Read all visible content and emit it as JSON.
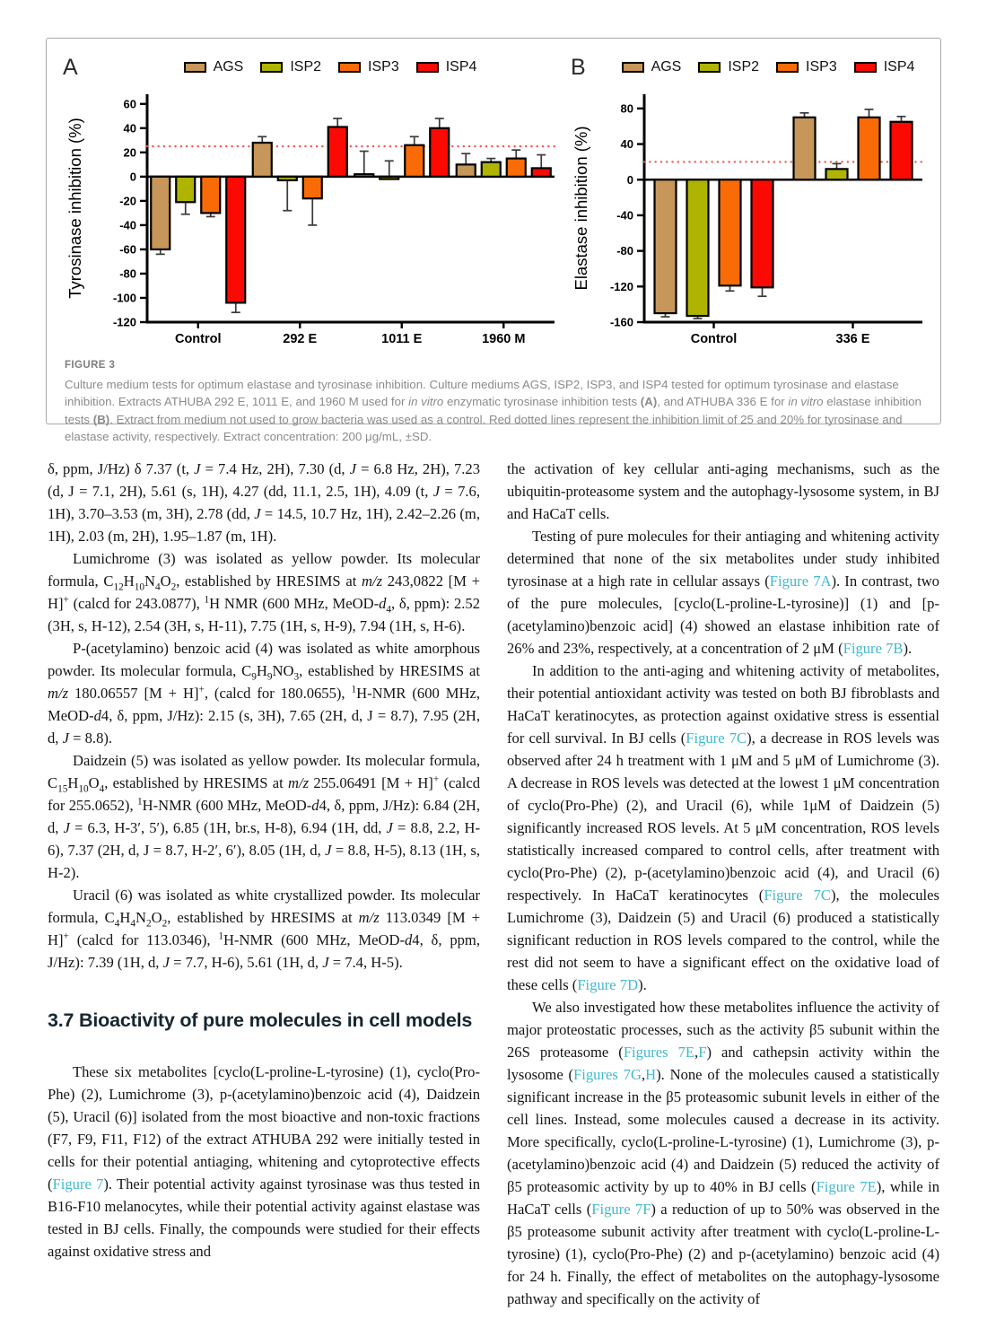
{
  "figure": {
    "caption_label": "FIGURE 3",
    "caption_html": "Culture medium tests for optimum elastase and tyrosinase inhibition. Culture mediums AGS, ISP2, ISP3, and ISP4 tested for optimum tyrosinase and elastase inhibition. Extracts ATHUBA 292 E, 1011 E, and 1960 M used for <i>in vitro</i> enzymatic tyrosinase inhibition tests <b>(A)</b>, and ATHUBA 336 E for <i>in vitro</i> elastase inhibition tests <b>(B)</b>. Extract from medium not used to grow bacteria was used as a control. Red dotted lines represent the inhibition limit of 25 and 20% for tyrosinase and elastase activity, respectively. Extract concentration: 200 μg/mL, ±SD."
  },
  "chart_data": [
    {
      "type": "bar",
      "panel": "A",
      "ylabel": "Tyrosinase inhibition (%)",
      "categories": [
        "Control",
        "292 E",
        "1011 E",
        "1960 M"
      ],
      "series": [
        {
          "name": "AGS",
          "color": "#C6965A",
          "values": [
            -60,
            28,
            2,
            10
          ],
          "errors": [
            4,
            5,
            19,
            9
          ],
          "error_dirs": [
            -1,
            1,
            1,
            1
          ]
        },
        {
          "name": "ISP2",
          "color": "#AFB400",
          "values": [
            -21,
            -3,
            -2,
            12
          ],
          "errors": [
            10,
            25,
            15,
            3
          ],
          "error_dirs": [
            -1,
            -1,
            1,
            1
          ]
        },
        {
          "name": "ISP3",
          "color": "#F96B07",
          "values": [
            -30,
            -18,
            26,
            15
          ],
          "errors": [
            3,
            22,
            7,
            7
          ],
          "error_dirs": [
            -1,
            -1,
            1,
            1
          ]
        },
        {
          "name": "ISP4",
          "color": "#FA0A02",
          "values": [
            -104,
            41,
            40,
            7
          ],
          "errors": [
            8,
            7,
            8,
            11
          ],
          "error_dirs": [
            -1,
            1,
            1,
            1
          ]
        }
      ],
      "ylim": [
        -120,
        68
      ],
      "yticks": [
        60,
        40,
        20,
        0,
        -20,
        -40,
        -60,
        -80,
        -100,
        -120
      ],
      "limit_line": 25,
      "limit_color": "#f2564e",
      "grid": false,
      "legend_position": "top"
    },
    {
      "type": "bar",
      "panel": "B",
      "ylabel": "Elastase inhibition (%)",
      "categories": [
        "Control",
        "336 E"
      ],
      "series": [
        {
          "name": "AGS",
          "color": "#C6965A",
          "values": [
            -150,
            70
          ],
          "errors": [
            4,
            5
          ],
          "error_dirs": [
            -1,
            1
          ]
        },
        {
          "name": "ISP2",
          "color": "#AFB400",
          "values": [
            -153,
            12
          ],
          "errors": [
            3,
            6
          ],
          "error_dirs": [
            -1,
            1
          ]
        },
        {
          "name": "ISP3",
          "color": "#F96B07",
          "values": [
            -119,
            70
          ],
          "errors": [
            6,
            9
          ],
          "error_dirs": [
            -1,
            1
          ]
        },
        {
          "name": "ISP4",
          "color": "#FA0A02",
          "values": [
            -121,
            65
          ],
          "errors": [
            10,
            6
          ],
          "error_dirs": [
            -1,
            1
          ]
        }
      ],
      "ylim": [
        -160,
        96
      ],
      "yticks": [
        80,
        40,
        0,
        -40,
        -80,
        -120,
        -160
      ],
      "limit_line": 20,
      "limit_color": "#f2564e",
      "grid": false,
      "legend_position": "top"
    }
  ],
  "body": {
    "columns": [
      {
        "name": "left",
        "blocks": [
          {
            "type": "p",
            "indent": false,
            "html": "δ, ppm, J/Hz) δ 7.37 (t, <i>J</i> = 7.4 Hz, 2H), 7.30 (d, <i>J</i> = 6.8 Hz, 2H), 7.23 (d, J = 7.1, 2H), 5.61 (s, 1H), 4.27 (dd, 11.1, 2.5, 1H), 4.09 (t, <i>J</i> = 7.6, 1H), 3.70–3.53 (m, 3H), 2.78 (dd, <i>J</i> = 14.5, 10.7 Hz, 1H), 2.42–2.26 (m, 1H), 2.03 (m, 2H), 1.95–1.87 (m, 1H)."
          },
          {
            "type": "p",
            "indent": true,
            "html": "Lumichrome (3) was isolated as yellow powder. Its molecular formula, C<sub>12</sub>H<sub>10</sub>N<sub>4</sub>O<sub>2</sub>, established by HRESIMS at <i>m/z</i> 243,0822 [M + H]<sup>+</sup> (calcd for 243.0877), <sup>1</sup>H NMR (600 MHz, MeOD-<i>d</i><sub>4</sub>, δ, ppm): 2.52 (3H, s, H-12), 2.54 (3H, s, H-11), 7.75 (1H, s, H-9), 7.94 (1H, s, H-6)."
          },
          {
            "type": "p",
            "indent": true,
            "html": "P-(acetylamino) benzoic acid (4) was isolated as white amorphous powder. Its molecular formula, C<sub>9</sub>H<sub>9</sub>NO<sub>3</sub>, established by HRESIMS at <i>m/z</i> 180.06557 [M + H]<sup>+</sup>, (calcd for 180.0655), <sup>1</sup>H-NMR (600 MHz, MeOD-<i>d</i>4, δ, ppm, J/Hz): 2.15 (s, 3H), 7.65 (2H, d, J = 8.7), 7.95 (2H, d, <i>J</i> = 8.8)."
          },
          {
            "type": "p",
            "indent": true,
            "html": "Daidzein (5) was isolated as yellow powder. Its molecular formula, C<sub>15</sub>H<sub>10</sub>O<sub>4</sub>, established by HRESIMS at <i>m/z</i> 255.06491 [M + H]<sup>+</sup> (calcd for 255.0652), <sup>1</sup>H-NMR (600 MHz, MeOD-<i>d</i>4, δ, ppm, J/Hz): 6.84 (2H, d, <i>J</i> = 6.3, H-3′, 5′), 6.85 (1H, br.s, H-8), 6.94 (1H, dd, <i>J</i> = 8.8, 2.2, H-6), 7.37 (2H, d, J = 8.7, H-2′, 6′), 8.05 (1H, d, <i>J</i> = 8.8, H-5), 8.13 (1H, s, H-2)."
          },
          {
            "type": "p",
            "indent": true,
            "html": "Uracil (6) was isolated as white crystallized powder. Its molecular formula, C<sub>4</sub>H<sub>4</sub>N<sub>2</sub>O<sub>2</sub>, established by HRESIMS at <i>m/z</i> 113.0349 [M + H]<sup>+</sup> (calcd for 113.0346), <sup>1</sup>H-NMR (600 MHz, MeOD-<i>d</i>4, δ, ppm, J/Hz): 7.39 (1H, d, <i>J</i> = 7.7, H-6), 5.61 (1H, d, <i>J</i> = 7.4, H-5)."
          },
          {
            "type": "heading",
            "text": "3.7 Bioactivity of pure molecules in cell models"
          },
          {
            "type": "p",
            "indent": true,
            "html": "These six metabolites [cyclo(L-proline-L-tyrosine) (1), cyclo(Pro-Phe) (2), Lumichrome (3), p-(acetylamino)benzoic acid (4), Daidzein (5), Uracil (6)] isolated from the most bioactive and non-toxic fractions (F7, F9, F11, F12) of the extract ATHUBA 292 were initially tested in cells for their potential antiaging, whitening and cytoprotective effects (<a class='figlink'>Figure 7</a>). Their potential activity against tyrosinase was thus tested in B16-F10 melanocytes, while their potential activity against elastase was tested in BJ cells. Finally, the compounds were studied for their effects against oxidative stress and"
          }
        ]
      },
      {
        "name": "right",
        "blocks": [
          {
            "type": "p",
            "indent": false,
            "html": "the activation of key cellular anti-aging mechanisms, such as the ubiquitin-proteasome system and the autophagy-lysosome system, in BJ and HaCaT cells."
          },
          {
            "type": "p",
            "indent": true,
            "html": "Testing of pure molecules for their antiaging and whitening activity determined that none of the six metabolites under study inhibited tyrosinase at a high rate in cellular assays (<a class='figlink'>Figure 7A</a>). In contrast, two of the pure molecules, [cyclo(L-proline-L-tyrosine)] (1) and [p-(acetylamino)benzoic acid] (4) showed an elastase inhibition rate of 26% and 23%, respectively, at a concentration of 2 μM (<a class='figlink'>Figure 7B</a>)."
          },
          {
            "type": "p",
            "indent": true,
            "html": "In addition to the anti-aging and whitening activity of metabolites, their potential antioxidant activity was tested on both BJ fibroblasts and HaCaT keratinocytes, as protection against oxidative stress is essential for cell survival. In BJ cells (<a class='figlink'>Figure 7C</a>), a decrease in ROS levels was observed after 24 h treatment with 1 μM and 5 μM of Lumichrome (3). A decrease in ROS levels was detected at the lowest 1 μM concentration of cyclo(Pro-Phe) (2), and Uracil (6), while 1μM of Daidzein (5) significantly increased ROS levels. At 5 μM concentration, ROS levels statistically increased compared to control cells, after treatment with cyclo(Pro-Phe) (2), p-(acetylamino)benzoic acid (4), and Uracil (6) respectively. In HaCaT keratinocytes (<a class='figlink'>Figure 7C</a>), the molecules Lumichrome (3), Daidzein (5) and Uracil (6) produced a statistically significant reduction in ROS levels compared to the control, while the rest did not seem to have a significant effect on the oxidative load of these cells (<a class='figlink'>Figure 7D</a>)."
          },
          {
            "type": "p",
            "indent": true,
            "html": "We also investigated how these metabolites influence the activity of major proteostatic processes, such as the activity β5 subunit within the 26S proteasome (<a class='figlink'>Figures 7E</a>,<a class='figlink'>F</a>) and cathepsin activity within the lysosome (<a class='figlink'>Figures 7G</a>,<a class='figlink'>H</a>). None of the molecules caused a statistically significant increase in the β5 proteasomic subunit levels in either of the cell lines. Instead, some molecules caused a decrease in its activity. More specifically, cyclo(L-proline-L-tyrosine) (1), Lumichrome (3), p-(acetylamino)benzoic acid (4) and Daidzein (5) reduced the activity of β5 proteasomic activity by up to 40% in BJ cells (<a class='figlink'>Figure 7E</a>), while in HaCaT cells (<a class='figlink'>Figure 7F</a>) a reduction of up to 50% was observed in the β5 proteasome subunit activity after treatment with cyclo(L-proline-L-tyrosine) (1), cyclo(Pro-Phe) (2) and p-(acetylamino) benzoic acid (4) for 24 h. Finally, the effect of metabolites on the autophagy-lysosome pathway and specifically on the activity of"
          }
        ]
      }
    ]
  },
  "colors": {
    "figure_link": "#41b9cb",
    "caption_gray": "#8b8b8b",
    "heading_dark": "#17262f",
    "error_bar": "#3a3a3a"
  }
}
